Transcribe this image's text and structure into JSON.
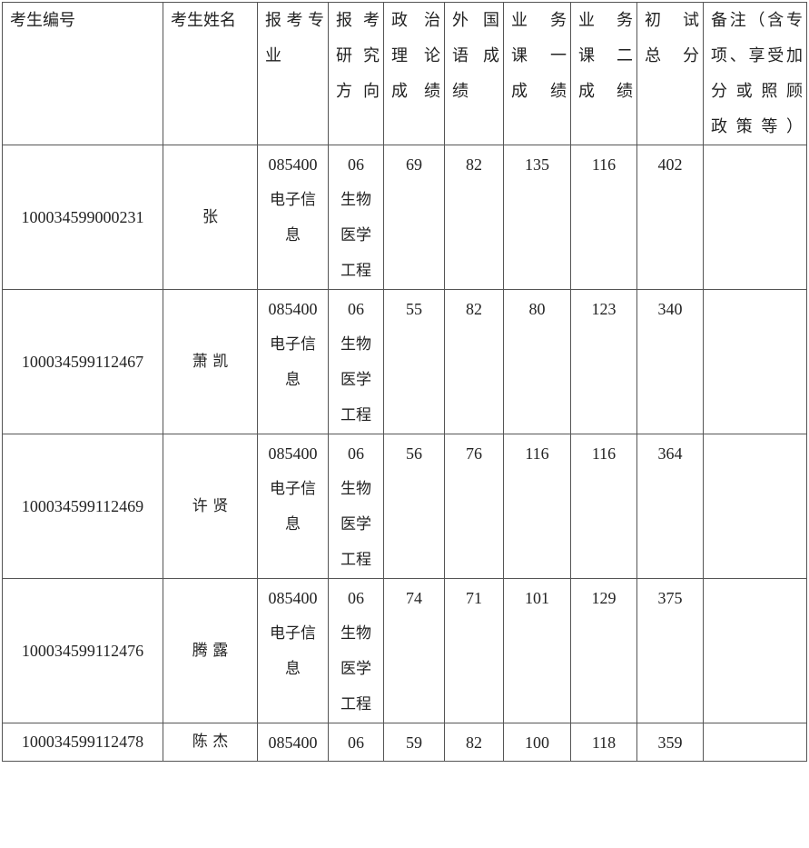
{
  "table": {
    "headers": [
      [
        "考生编号"
      ],
      [
        "考生姓名"
      ],
      [
        "报考专",
        "业"
      ],
      [
        "报考",
        "研究",
        "方向"
      ],
      [
        "政治",
        "理论",
        "成绩"
      ],
      [
        "外国",
        "语成",
        "绩"
      ],
      [
        "业务",
        "课一",
        "成绩"
      ],
      [
        "业务",
        "课二",
        "成绩"
      ],
      [
        "初试",
        "总分"
      ],
      [
        "备注（含专",
        "项、享受加",
        "分或照顾",
        "政策等）"
      ]
    ],
    "rows": [
      {
        "id": "100034599000231",
        "name": "张  ",
        "major": [
          "085400",
          "电子信",
          "息"
        ],
        "direction": [
          "06",
          "生物",
          "医学",
          "工程"
        ],
        "politics": "69",
        "foreign": "82",
        "course1": "135",
        "course2": "116",
        "total": "402",
        "note": ""
      },
      {
        "id": "100034599112467",
        "name": "萧  凯",
        "major": [
          "085400",
          "电子信",
          "息"
        ],
        "direction": [
          "06",
          "生物",
          "医学",
          "工程"
        ],
        "politics": "55",
        "foreign": "82",
        "course1": "80",
        "course2": "123",
        "total": "340",
        "note": ""
      },
      {
        "id": "100034599112469",
        "name": "许  贤",
        "major": [
          "085400",
          "电子信",
          "息"
        ],
        "direction": [
          "06",
          "生物",
          "医学",
          "工程"
        ],
        "politics": "56",
        "foreign": "76",
        "course1": "116",
        "course2": "116",
        "total": "364",
        "note": ""
      },
      {
        "id": "100034599112476",
        "name": "腾  露",
        "major": [
          "085400",
          "电子信",
          "息"
        ],
        "direction": [
          "06",
          "生物",
          "医学",
          "工程"
        ],
        "politics": "74",
        "foreign": "71",
        "course1": "101",
        "course2": "129",
        "total": "375",
        "note": ""
      },
      {
        "id": "100034599112478",
        "name": "陈  杰",
        "major": [
          "085400"
        ],
        "direction": [
          "06"
        ],
        "politics": "59",
        "foreign": "82",
        "course1": "100",
        "course2": "118",
        "total": "359",
        "note": ""
      }
    ]
  }
}
